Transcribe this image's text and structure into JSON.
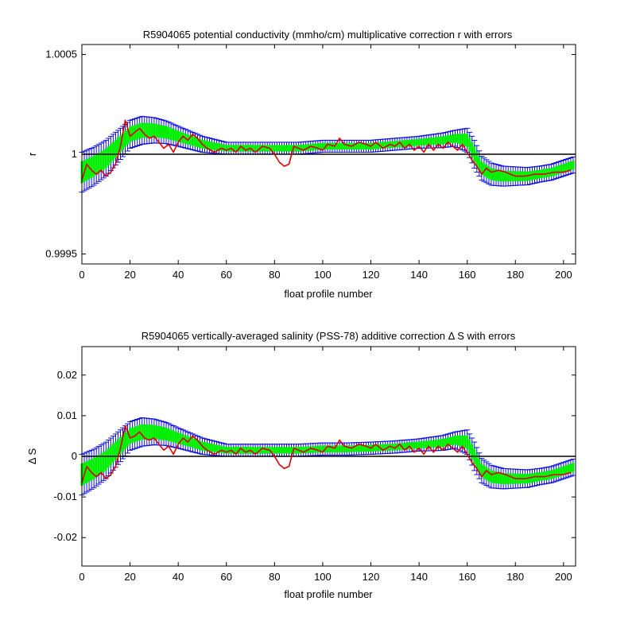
{
  "chart_data": [
    {
      "type": "line",
      "title": "R5904065 potential conductivity (mmho/cm) multiplicative correction r with errors",
      "xlabel": "float profile number",
      "ylabel": "r",
      "xlim": [
        0,
        205
      ],
      "ylim": [
        0.99945,
        1.00055
      ],
      "xticks": [
        0,
        20,
        40,
        60,
        80,
        100,
        120,
        140,
        160,
        180,
        200
      ],
      "yticks": [
        0.9995,
        1,
        1.0005
      ],
      "ytick_labels": [
        "0.9995",
        "1",
        "1.0005"
      ],
      "reference_line": 1,
      "colors": {
        "fit": "#00ee00",
        "error": "#1010e0",
        "raw": "#dd0000",
        "reference": "#000000"
      },
      "fit_knots": {
        "x": [
          0,
          5,
          10,
          15,
          20,
          25,
          30,
          35,
          40,
          45,
          50,
          55,
          60,
          70,
          80,
          90,
          100,
          110,
          120,
          130,
          140,
          150,
          155,
          160,
          163,
          166,
          170,
          175,
          180,
          185,
          190,
          195,
          200,
          205
        ],
        "y": [
          0.99991,
          0.99994,
          0.99998,
          1.00004,
          1.0001,
          1.00012,
          1.00012,
          1.00011,
          1.00009,
          1.00007,
          1.00005,
          1.00004,
          1.00003,
          1.00003,
          1.00003,
          1.00003,
          1.00004,
          1.00004,
          1.00004,
          1.00005,
          1.00006,
          1.00007,
          1.00008,
          1.00007,
          1.0,
          0.99993,
          0.9999,
          0.99989,
          0.99989,
          0.99989,
          0.9999,
          0.99991,
          0.99993,
          0.99995
        ]
      },
      "error_knots": {
        "x": [
          0,
          10,
          20,
          25,
          40,
          60,
          100,
          140,
          155,
          160,
          163,
          166,
          175,
          190,
          205
        ],
        "y": [
          0.0001,
          9e-05,
          7e-05,
          7e-05,
          5e-05,
          3e-05,
          3e-05,
          3e-05,
          4e-05,
          6e-05,
          7e-05,
          6e-05,
          5e-05,
          4e-05,
          4e-05
        ]
      },
      "raw_points": {
        "x": [
          0,
          2,
          4,
          6,
          8,
          10,
          12,
          14,
          16,
          18,
          20,
          22,
          24,
          26,
          28,
          30,
          32,
          34,
          36,
          38,
          40,
          42,
          44,
          46,
          48,
          50,
          52,
          55,
          58,
          60,
          62,
          64,
          66,
          68,
          70,
          72,
          75,
          78,
          80,
          82,
          84,
          86,
          88,
          90,
          92,
          95,
          98,
          100,
          102,
          105,
          107,
          109,
          112,
          115,
          118,
          120,
          122,
          125,
          128,
          130,
          132,
          134,
          136,
          138,
          140,
          142,
          144,
          146,
          148,
          150,
          152,
          154,
          156,
          158,
          160,
          162,
          164,
          166,
          168,
          170,
          173,
          176,
          180,
          184,
          188,
          192,
          196,
          200,
          203
        ],
        "y": [
          0.99987,
          0.99995,
          0.99992,
          0.9999,
          0.99992,
          0.99989,
          0.99991,
          0.99995,
          1.00004,
          1.00017,
          1.00009,
          1.00011,
          1.00013,
          1.0001,
          1.00008,
          1.00009,
          1.00006,
          1.00003,
          1.00005,
          1.00001,
          1.00006,
          1.00009,
          1.00007,
          1.0001,
          1.00008,
          1.00005,
          1.00003,
          1.00001,
          1.00003,
          1.00002,
          1.00003,
          1.00001,
          1.00004,
          1.00002,
          1.00003,
          1.00001,
          1.00004,
          1.00003,
          1.0,
          0.99996,
          0.99994,
          0.99995,
          1.00004,
          1.00003,
          1.00002,
          1.00004,
          1.00003,
          1.00002,
          1.00005,
          1.00004,
          1.00008,
          1.00005,
          1.00004,
          1.00006,
          1.00005,
          1.00004,
          1.00006,
          1.00003,
          1.00005,
          1.00004,
          1.00006,
          1.00003,
          1.00005,
          1.00002,
          1.00004,
          1.00001,
          1.00005,
          1.00002,
          1.00005,
          1.00003,
          1.00006,
          1.00004,
          1.00002,
          1.00005,
          1.00001,
          0.99997,
          0.99994,
          0.9999,
          0.99993,
          0.99991,
          0.99992,
          0.99991,
          0.99989,
          0.99989,
          0.9999,
          0.9999,
          0.99991,
          0.99991,
          0.99992
        ]
      }
    },
    {
      "type": "line",
      "title": "R5904065 vertically-averaged salinity (PSS-78) additive correction Δ S with errors",
      "xlabel": "float profile number",
      "ylabel": "Δ S",
      "xlim": [
        0,
        205
      ],
      "ylim": [
        -0.027,
        0.027
      ],
      "xticks": [
        0,
        20,
        40,
        60,
        80,
        100,
        120,
        140,
        160,
        180,
        200
      ],
      "yticks": [
        -0.02,
        -0.01,
        0,
        0.01,
        0.02
      ],
      "ytick_labels": [
        "-0.02",
        "-0.01",
        "0",
        "0.01",
        "0.02"
      ],
      "reference_line": 0,
      "colors": {
        "fit": "#00ee00",
        "error": "#1010e0",
        "raw": "#dd0000",
        "reference": "#000000"
      },
      "fit_knots": {
        "x": [
          0,
          5,
          10,
          15,
          20,
          25,
          30,
          35,
          40,
          45,
          50,
          55,
          60,
          70,
          80,
          90,
          100,
          110,
          120,
          130,
          140,
          150,
          155,
          160,
          163,
          166,
          170,
          175,
          180,
          185,
          190,
          195,
          200,
          205
        ],
        "y": [
          -0.0045,
          -0.003,
          -0.001,
          0.002,
          0.005,
          0.006,
          0.006,
          0.0055,
          0.0045,
          0.0035,
          0.0025,
          0.002,
          0.0015,
          0.0015,
          0.0015,
          0.0015,
          0.0018,
          0.0018,
          0.002,
          0.0023,
          0.0028,
          0.0033,
          0.004,
          0.0035,
          0.0,
          -0.0035,
          -0.005,
          -0.0055,
          -0.0055,
          -0.0055,
          -0.005,
          -0.0045,
          -0.0035,
          -0.0025
        ]
      },
      "error_knots": {
        "x": [
          0,
          10,
          20,
          25,
          40,
          60,
          100,
          140,
          155,
          160,
          163,
          166,
          175,
          190,
          205
        ],
        "y": [
          0.005,
          0.0045,
          0.0035,
          0.0035,
          0.0025,
          0.0015,
          0.0015,
          0.0015,
          0.002,
          0.003,
          0.0035,
          0.003,
          0.0025,
          0.002,
          0.002
        ]
      },
      "raw_points": {
        "x": [
          0,
          2,
          4,
          6,
          8,
          10,
          12,
          14,
          16,
          18,
          20,
          22,
          24,
          26,
          28,
          30,
          32,
          34,
          36,
          38,
          40,
          42,
          44,
          46,
          48,
          50,
          52,
          55,
          58,
          60,
          62,
          64,
          66,
          68,
          70,
          72,
          75,
          78,
          80,
          82,
          84,
          86,
          88,
          90,
          92,
          95,
          98,
          100,
          102,
          105,
          107,
          109,
          112,
          115,
          118,
          120,
          122,
          125,
          128,
          130,
          132,
          134,
          136,
          138,
          140,
          142,
          144,
          146,
          148,
          150,
          152,
          154,
          156,
          158,
          160,
          162,
          164,
          166,
          168,
          170,
          173,
          176,
          180,
          184,
          188,
          192,
          196,
          200,
          203
        ],
        "y": [
          -0.0065,
          -0.0025,
          -0.004,
          -0.005,
          -0.004,
          -0.0055,
          -0.0045,
          -0.0025,
          0.002,
          0.0075,
          0.0045,
          0.005,
          0.006,
          0.0045,
          0.004,
          0.0045,
          0.003,
          0.0015,
          0.0025,
          0.0005,
          0.003,
          0.0045,
          0.0035,
          0.005,
          0.004,
          0.0025,
          0.0015,
          0.0005,
          0.0015,
          0.001,
          0.0015,
          0.0005,
          0.002,
          0.001,
          0.0015,
          0.0005,
          0.002,
          0.0015,
          0.0,
          -0.002,
          -0.003,
          -0.0025,
          0.002,
          0.0015,
          0.001,
          0.002,
          0.0015,
          0.001,
          0.0025,
          0.002,
          0.004,
          0.0025,
          0.002,
          0.003,
          0.0025,
          0.002,
          0.003,
          0.0015,
          0.0025,
          0.002,
          0.003,
          0.0015,
          0.0025,
          0.001,
          0.002,
          0.0005,
          0.0025,
          0.001,
          0.0025,
          0.0015,
          0.003,
          0.002,
          0.001,
          0.0025,
          0.0005,
          -0.0015,
          -0.003,
          -0.005,
          -0.0035,
          -0.0045,
          -0.004,
          -0.0045,
          -0.0055,
          -0.0055,
          -0.005,
          -0.005,
          -0.0045,
          -0.0045,
          -0.004
        ]
      }
    }
  ]
}
